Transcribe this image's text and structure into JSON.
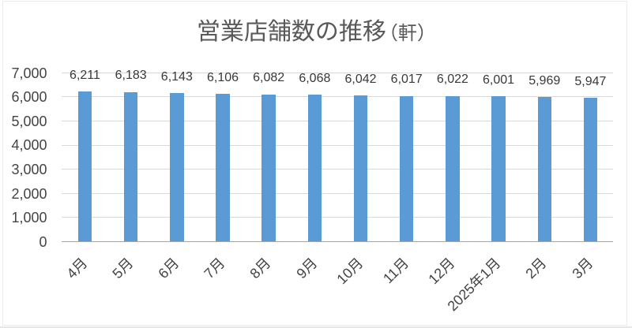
{
  "chart_data": {
    "type": "bar",
    "title": "営業店舗数の推移",
    "title_unit": "（軒）",
    "categories": [
      "4月",
      "5月",
      "6月",
      "7月",
      "8月",
      "9月",
      "10月",
      "11月",
      "12月",
      "2025年1月",
      "2月",
      "3月"
    ],
    "values": [
      6211,
      6183,
      6143,
      6106,
      6082,
      6068,
      6042,
      6017,
      6022,
      6001,
      5969,
      5947
    ],
    "data_labels": [
      "6,211",
      "6,183",
      "6,143",
      "6,106",
      "6,082",
      "6,068",
      "6,042",
      "6,017",
      "6,022",
      "6,001",
      "5,969",
      "5,947"
    ],
    "y_tick_labels": [
      "0",
      "1,000",
      "2,000",
      "3,000",
      "4,000",
      "5,000",
      "6,000",
      "7,000"
    ],
    "ylim": [
      0,
      7000
    ],
    "y_tick_interval": 1000,
    "xlabel": "",
    "ylabel": "",
    "legend": "none",
    "grid": "horizontal",
    "x_label_rotation": -45,
    "colors": {
      "bar": "#5b9bd5",
      "gridline": "#d9d9d9",
      "axis_line": "#a6a6a6",
      "title_text": "#595959",
      "axis_text": "#444444",
      "data_label_text": "#383838"
    }
  }
}
